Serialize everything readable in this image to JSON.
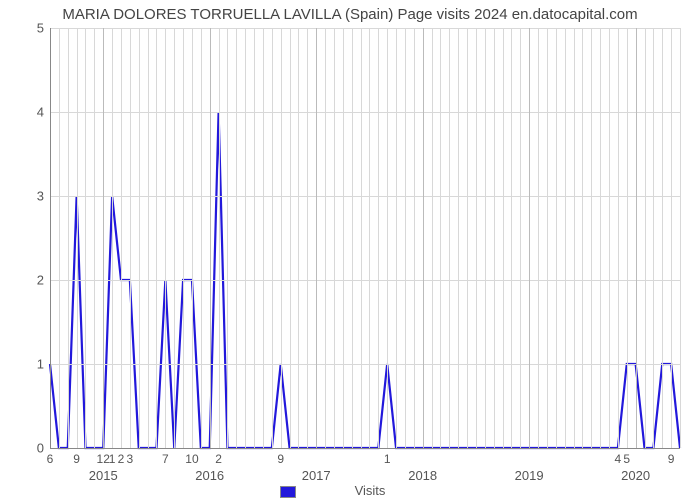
{
  "title": "MARIA DOLORES TORRUELLA LAVILLA (Spain) Page visits 2024 en.datocapital.com",
  "xlabel": "Visits",
  "chart": {
    "type": "line",
    "line_color": "#2218db",
    "line_width": 2.2,
    "background_color": "#ffffff",
    "grid_color": "#d8d8d8",
    "axis_color": "#888888",
    "text_color": "#555555",
    "title_fontsize": 15,
    "ylim": [
      0,
      5
    ],
    "yticks": [
      0,
      1,
      2,
      3,
      4,
      5
    ],
    "n_points": 72,
    "values": [
      1,
      0,
      0,
      3,
      0,
      0,
      0,
      3,
      2,
      2,
      0,
      0,
      0,
      2,
      0,
      2,
      2,
      0,
      0,
      4,
      0,
      0,
      0,
      0,
      0,
      0,
      1,
      0,
      0,
      0,
      0,
      0,
      0,
      0,
      0,
      0,
      0,
      0,
      1,
      0,
      0,
      0,
      0,
      0,
      0,
      0,
      0,
      0,
      0,
      0,
      0,
      0,
      0,
      0,
      0,
      0,
      0,
      0,
      0,
      0,
      0,
      0,
      0,
      0,
      0,
      1,
      1,
      0,
      0,
      1,
      1,
      0
    ],
    "minor_tick_labels": {
      "0": "6",
      "3": "9",
      "6": "12",
      "7": "1",
      "8": "2",
      "9": "3",
      "13": "7",
      "16": "10",
      "19": "2",
      "26": "9",
      "38": "1",
      "64": "4",
      "65": "5",
      "70": "9"
    },
    "year_ticks": [
      {
        "pos": 6,
        "label": "2015"
      },
      {
        "pos": 18,
        "label": "2016"
      },
      {
        "pos": 30,
        "label": "2017"
      },
      {
        "pos": 42,
        "label": "2018"
      },
      {
        "pos": 54,
        "label": "2019"
      },
      {
        "pos": 66,
        "label": "2020"
      }
    ]
  }
}
